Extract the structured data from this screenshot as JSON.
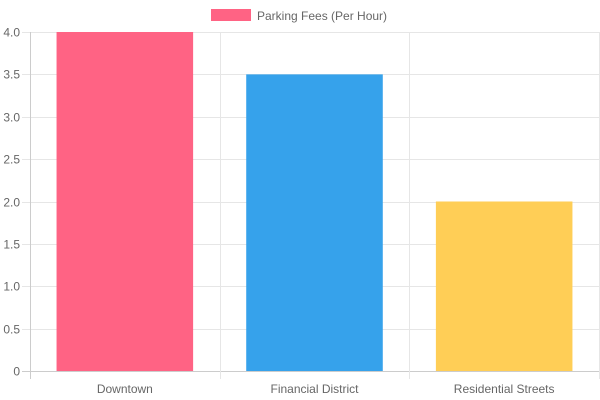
{
  "chart_data": {
    "type": "bar",
    "categories": [
      "Downtown",
      "Financial District",
      "Residential Streets"
    ],
    "series": [
      {
        "name": "Parking Fees (Per Hour)",
        "values": [
          4.0,
          3.5,
          2.0
        ],
        "colors": [
          "#ff6384",
          "#36a2eb",
          "#ffce56"
        ]
      }
    ],
    "y_ticks": [
      "0",
      "0.5",
      "1.0",
      "1.5",
      "2.0",
      "2.5",
      "3.0",
      "3.5",
      "4.0"
    ],
    "ylim": [
      0,
      4
    ],
    "grid": true,
    "legend_position": "top",
    "legend_color": "#ff6384",
    "grid_color": "#e6e6e6",
    "axis_color": "#cccccc",
    "text_color": "#666666"
  }
}
